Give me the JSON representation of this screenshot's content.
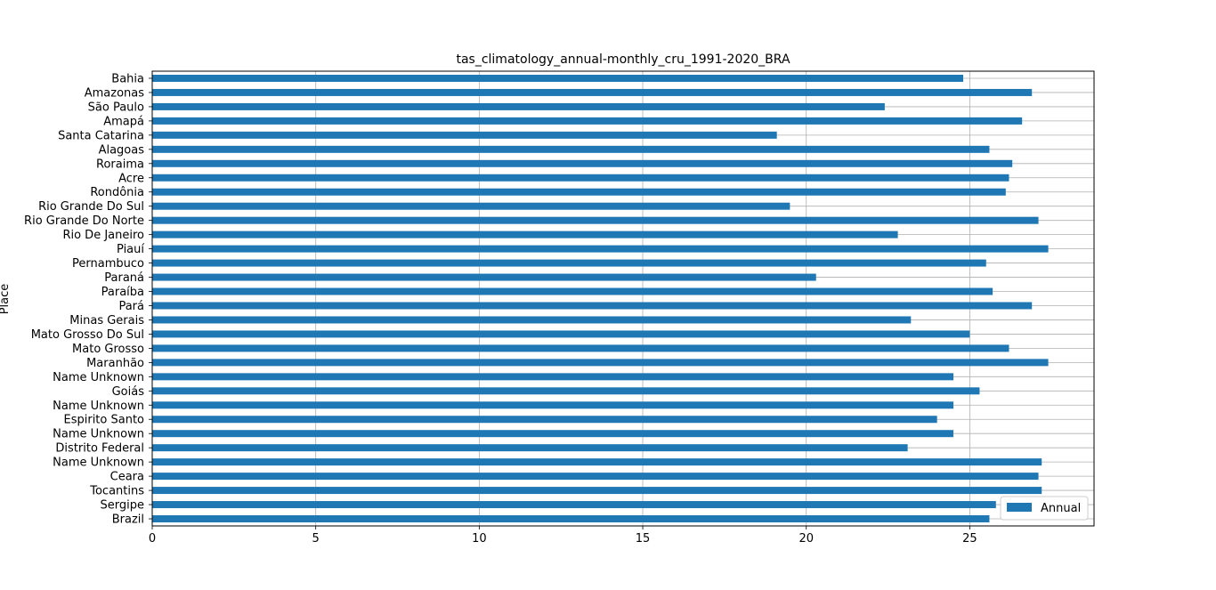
{
  "chart_data": {
    "type": "bar",
    "orientation": "horizontal",
    "title": "tas_climatology_annual-monthly_cru_1991-2020_BRA",
    "xlabel": "",
    "ylabel": "Place",
    "xlim": [
      0,
      28.8
    ],
    "xticks": [
      0,
      5,
      10,
      15,
      20,
      25
    ],
    "grid": true,
    "legend_position": "bottom-right",
    "categories": [
      "Bahia",
      "Amazonas",
      "São Paulo",
      "Amapá",
      "Santa Catarina",
      "Alagoas",
      "Roraima",
      "Acre",
      "Rondônia",
      "Rio Grande Do Sul",
      "Rio Grande Do Norte",
      "Rio De Janeiro",
      "Piauí",
      "Pernambuco",
      "Paraná",
      "Paraíba",
      "Pará",
      "Minas Gerais",
      "Mato Grosso Do Sul",
      "Mato Grosso",
      "Maranhão",
      "Name Unknown",
      "Goiás",
      "Name Unknown",
      "Espirito Santo",
      "Name Unknown",
      "Distrito Federal",
      "Name Unknown",
      "Ceara",
      "Tocantins",
      "Sergipe",
      "Brazil"
    ],
    "series": [
      {
        "name": "Annual",
        "color": "#1f77b4",
        "values": [
          24.8,
          26.9,
          22.4,
          26.6,
          19.1,
          25.6,
          26.3,
          26.2,
          26.1,
          19.5,
          27.1,
          22.8,
          27.4,
          25.5,
          20.3,
          25.7,
          26.9,
          23.2,
          25.0,
          26.2,
          27.4,
          24.5,
          25.3,
          24.5,
          24.0,
          24.5,
          23.1,
          27.2,
          27.1,
          27.2,
          25.8,
          25.6
        ]
      }
    ]
  }
}
